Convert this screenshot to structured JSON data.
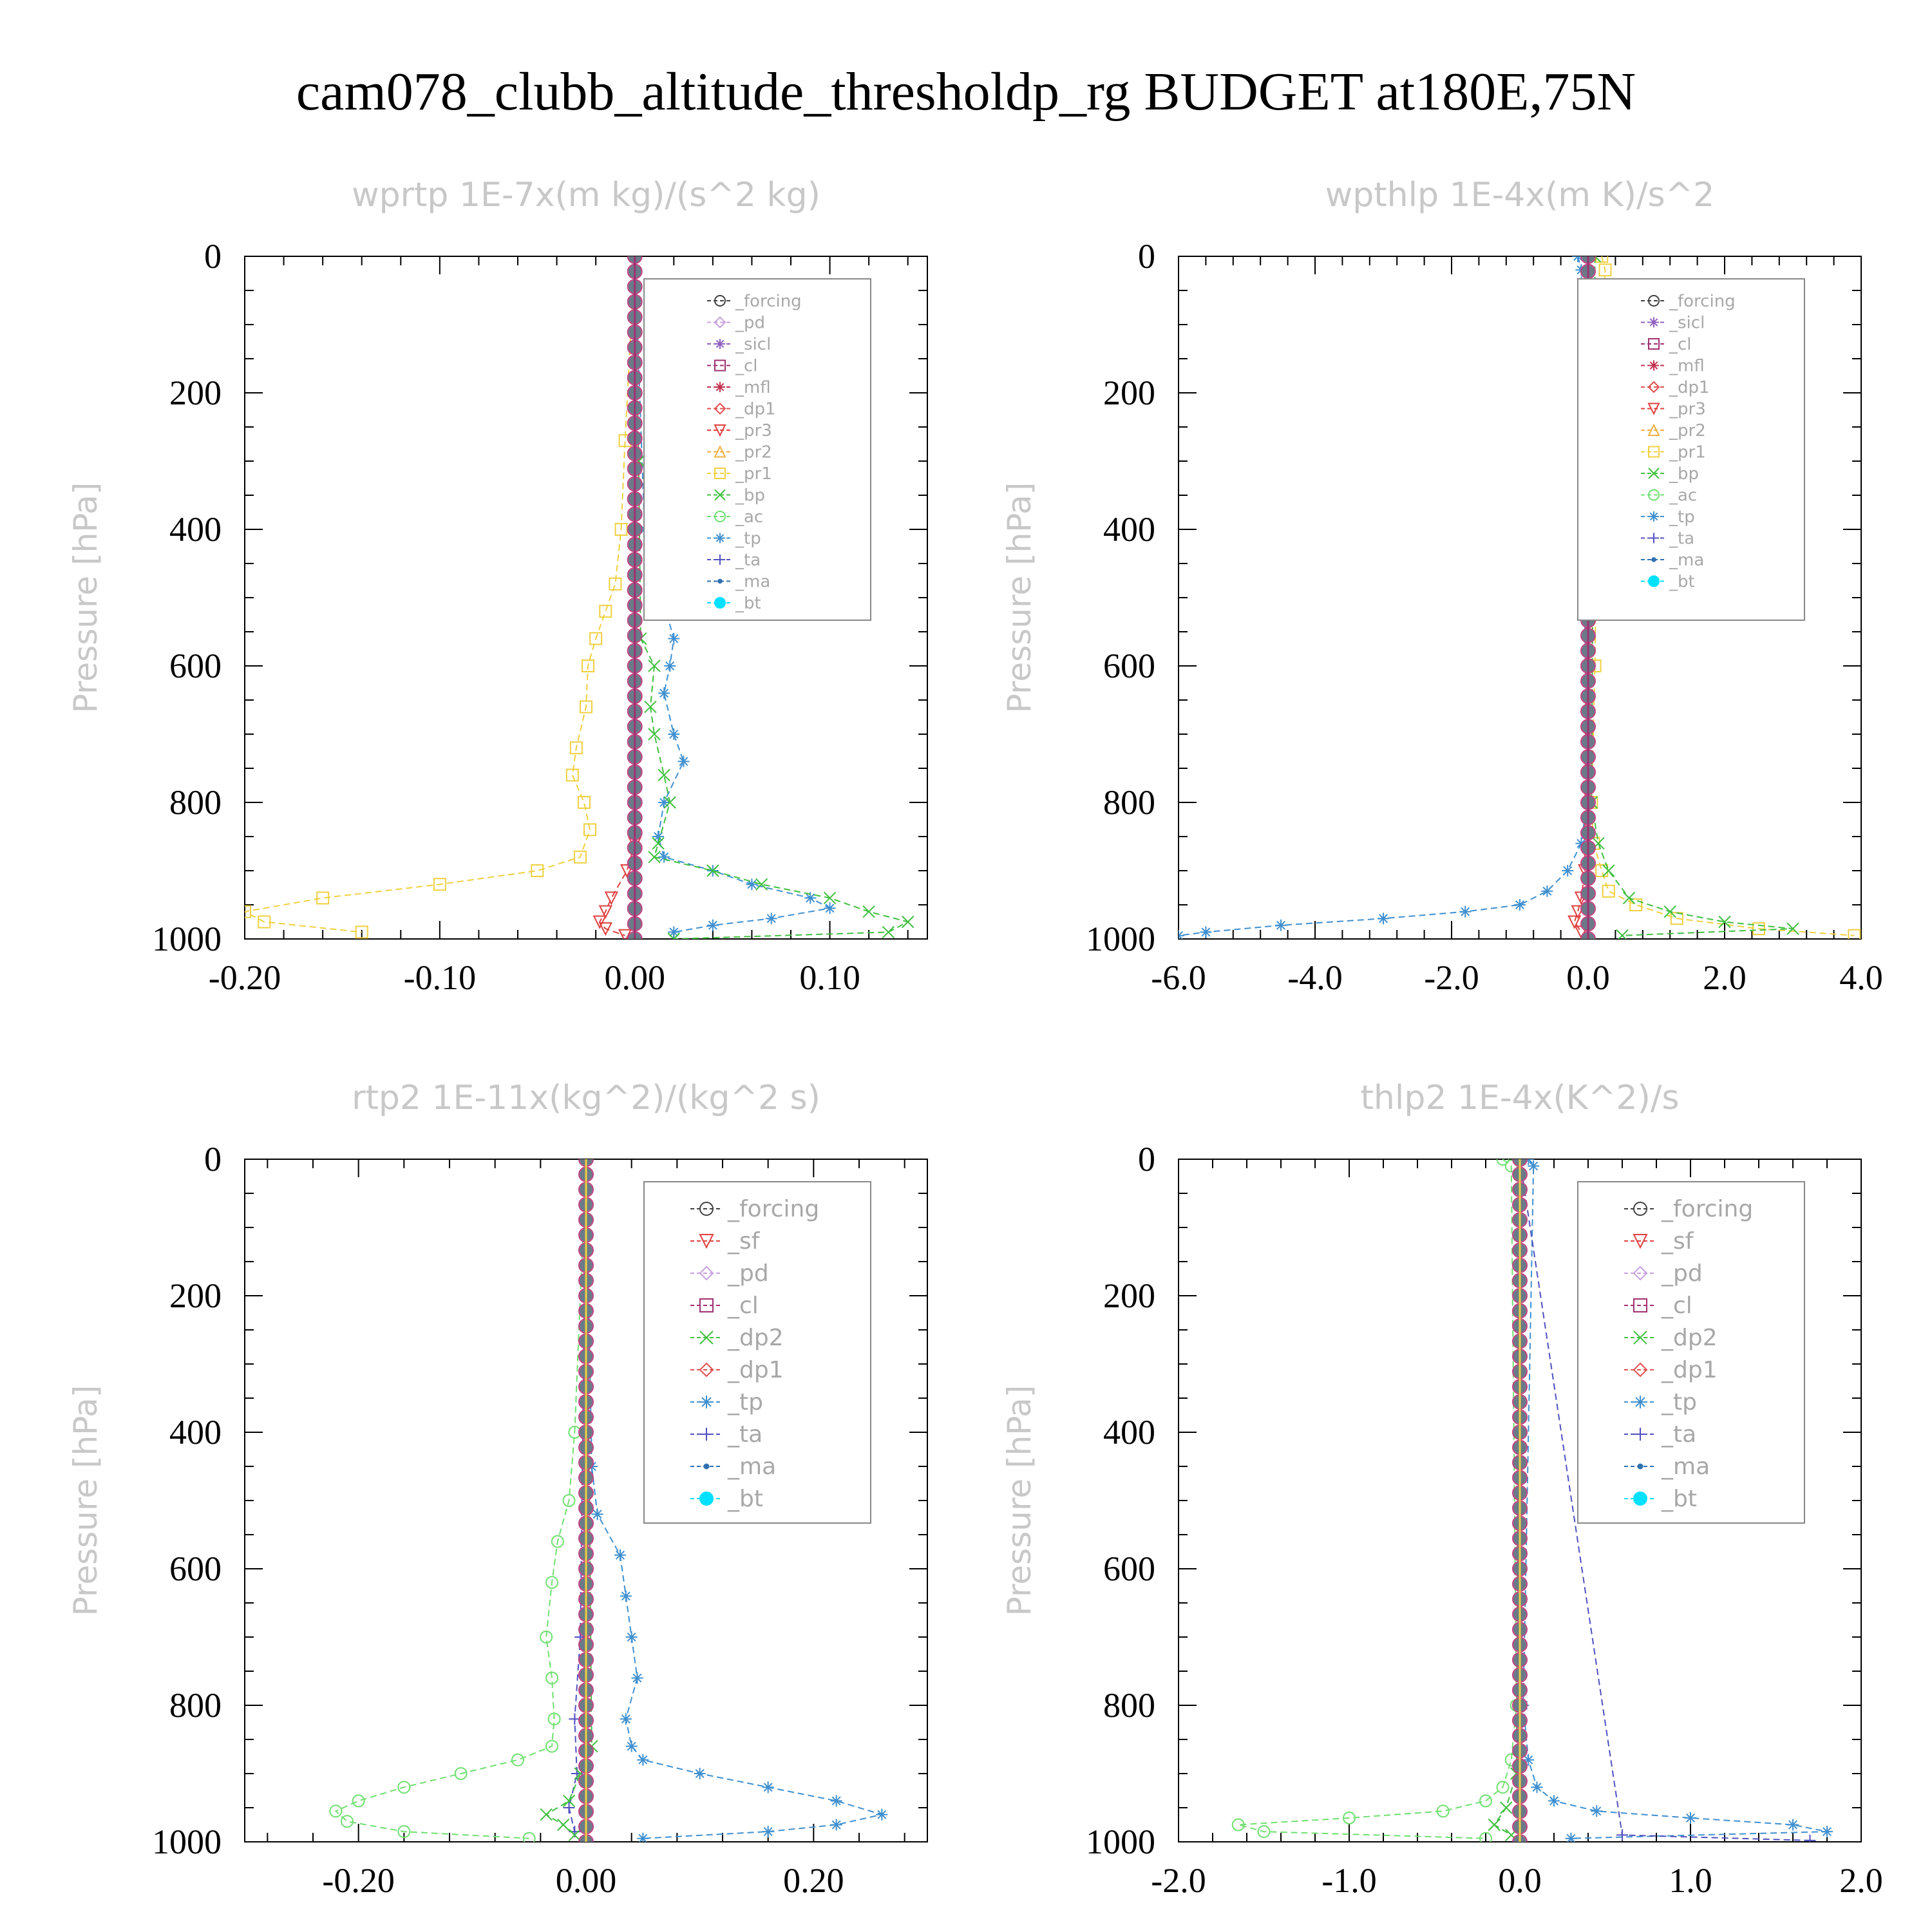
{
  "title": "cam078_clubb_altitude_thresholdp_rg  BUDGET at180E,75N",
  "colors": {
    "forcing": "#404040",
    "pd": "#c8a0e0",
    "sicl": "#9060c0",
    "cl": "#a03070",
    "mfl": "#c03050",
    "dp1": "#e05050",
    "pr3": "#e04040",
    "pr2": "#f0b040",
    "pr1": "#f0d040",
    "bp": "#40c040",
    "ac": "#70e070",
    "tp": "#4090d0",
    "ta": "#5050c0",
    "ma": "#3070b0",
    "bt": "#00e0ff"
  },
  "chart_data": [
    {
      "type": "line",
      "title": "wprtp   1E-7x(m kg)/(s^2 kg)",
      "ylabel": "Pressure [hPa]",
      "xlim": [
        -0.2,
        0.15
      ],
      "ylim": [
        0,
        1000
      ],
      "xticks": [
        "-0.20",
        "-0.10",
        "0.00",
        "0.10"
      ],
      "xtick_values": [
        -0.2,
        -0.1,
        0.0,
        0.1
      ],
      "yticks": [
        "0",
        "200",
        "400",
        "600",
        "800",
        "1000"
      ],
      "legend": [
        "_forcing",
        "_pd",
        "_sicl",
        "_cl",
        "_mfl",
        "_dp1",
        "_pr3",
        "_pr2",
        "_pr1",
        "_bp",
        "_ac",
        "_tp",
        "_ta",
        "_ma",
        "_bt"
      ],
      "legend_size": "small",
      "series": [
        {
          "key": "pr1",
          "pressure": [
            0,
            270,
            400,
            480,
            520,
            560,
            600,
            660,
            720,
            760,
            800,
            840,
            880,
            900,
            920,
            940,
            960,
            975,
            990
          ],
          "values": [
            0,
            -0.005,
            -0.007,
            -0.01,
            -0.015,
            -0.02,
            -0.024,
            -0.025,
            -0.03,
            -0.032,
            -0.026,
            -0.023,
            -0.028,
            -0.05,
            -0.1,
            -0.16,
            -0.2,
            -0.19,
            -0.14
          ]
        },
        {
          "key": "tp",
          "pressure": [
            0,
            400,
            480,
            560,
            600,
            640,
            700,
            740,
            800,
            850,
            880,
            900,
            920,
            940,
            955,
            970,
            980,
            990
          ],
          "values": [
            0,
            0.005,
            0.012,
            0.02,
            0.018,
            0.015,
            0.02,
            0.025,
            0.015,
            0.012,
            0.015,
            0.04,
            0.06,
            0.09,
            0.1,
            0.07,
            0.04,
            0.02
          ]
        },
        {
          "key": "bp",
          "pressure": [
            0,
            300,
            560,
            600,
            660,
            700,
            760,
            800,
            860,
            880,
            900,
            920,
            940,
            960,
            975,
            990,
            1000
          ],
          "values": [
            0,
            0.002,
            0.003,
            0.01,
            0.008,
            0.01,
            0.015,
            0.018,
            0.012,
            0.01,
            0.04,
            0.065,
            0.1,
            0.12,
            0.14,
            0.13,
            0.02
          ]
        },
        {
          "key": "pr3",
          "pressure": [
            0,
            860,
            900,
            940,
            960,
            975,
            985,
            995
          ],
          "values": [
            0,
            0,
            -0.004,
            -0.012,
            -0.015,
            -0.018,
            -0.015,
            -0.005
          ]
        },
        {
          "key": "forcing",
          "pressure": [
            0,
            1000
          ],
          "values": [
            0,
            0
          ],
          "markers": 45
        },
        {
          "key": "cl",
          "pressure": [
            0,
            1000
          ],
          "values": [
            0,
            0
          ]
        }
      ]
    },
    {
      "type": "line",
      "title": "wpthlp   1E-4x(m K)/s^2",
      "ylabel": "Pressure [hPa]",
      "xlim": [
        -6.0,
        4.0
      ],
      "ylim": [
        0,
        1000
      ],
      "xticks": [
        "-6.0",
        "-4.0",
        "-2.0",
        "0.0",
        "2.0",
        "4.0"
      ],
      "xtick_values": [
        -6,
        -4,
        -2,
        0,
        2,
        4
      ],
      "yticks": [
        "0",
        "200",
        "400",
        "600",
        "800",
        "1000"
      ],
      "legend": [
        "_forcing",
        "_sicl",
        "_cl",
        "_mfl",
        "_dp1",
        "_pr3",
        "_pr2",
        "_pr1",
        "_bp",
        "_ac",
        "_tp",
        "_ta",
        "_ma",
        "_bt"
      ],
      "legend_size": "small",
      "series": [
        {
          "key": "pr1",
          "pressure": [
            0,
            20,
            200,
            600,
            800,
            860,
            900,
            930,
            950,
            970,
            985,
            995
          ],
          "values": [
            0.2,
            0.25,
            0.15,
            0.1,
            0.05,
            0.08,
            0.2,
            0.3,
            0.7,
            1.3,
            2.5,
            3.9
          ]
        },
        {
          "key": "bp",
          "pressure": [
            0,
            800,
            860,
            900,
            940,
            960,
            975,
            985,
            995
          ],
          "values": [
            0.1,
            0.05,
            0.15,
            0.3,
            0.6,
            1.2,
            2.0,
            3.0,
            0.5
          ]
        },
        {
          "key": "tp",
          "pressure": [
            0,
            20,
            800,
            860,
            900,
            930,
            950,
            960,
            970,
            980,
            990,
            995
          ],
          "values": [
            -0.15,
            -0.1,
            -0.02,
            -0.1,
            -0.3,
            -0.6,
            -1.0,
            -1.8,
            -3.0,
            -4.5,
            -5.6,
            -6.0
          ]
        },
        {
          "key": "pr3",
          "pressure": [
            0,
            900,
            940,
            960,
            975,
            990
          ],
          "values": [
            0,
            -0.05,
            -0.1,
            -0.15,
            -0.2,
            -0.1
          ]
        },
        {
          "key": "forcing",
          "pressure": [
            0,
            1000
          ],
          "values": [
            0,
            0
          ],
          "markers": 45
        },
        {
          "key": "cl",
          "pressure": [
            0,
            1000
          ],
          "values": [
            0,
            0
          ]
        }
      ]
    },
    {
      "type": "line",
      "title": "rtp2   1E-11x(kg^2)/(kg^2 s)",
      "ylabel": "Pressure [hPa]",
      "xlim": [
        -0.3,
        0.3
      ],
      "ylim": [
        0,
        1000
      ],
      "xticks": [
        "-0.20",
        "0.00",
        "0.20"
      ],
      "xtick_values": [
        -0.2,
        0.0,
        0.2
      ],
      "yticks": [
        "0",
        "200",
        "400",
        "600",
        "800",
        "1000"
      ],
      "legend": [
        "_forcing",
        "_sf",
        "_pd",
        "_cl",
        "_dp2",
        "_dp1",
        "_tp",
        "_ta",
        "_ma",
        "_bt"
      ],
      "legend_size": "large",
      "series": [
        {
          "key": "ac",
          "pressure": [
            0,
            400,
            500,
            560,
            620,
            700,
            760,
            820,
            860,
            880,
            900,
            920,
            940,
            955,
            970,
            985,
            995
          ],
          "values": [
            0,
            -0.01,
            -0.015,
            -0.025,
            -0.03,
            -0.035,
            -0.03,
            -0.028,
            -0.03,
            -0.06,
            -0.11,
            -0.16,
            -0.2,
            -0.22,
            -0.21,
            -0.16,
            -0.05
          ]
        },
        {
          "key": "tp",
          "pressure": [
            0,
            450,
            520,
            580,
            640,
            700,
            760,
            820,
            860,
            880,
            900,
            920,
            940,
            960,
            975,
            985,
            995
          ],
          "values": [
            0,
            0.005,
            0.01,
            0.03,
            0.035,
            0.04,
            0.045,
            0.035,
            0.04,
            0.05,
            0.1,
            0.16,
            0.22,
            0.26,
            0.22,
            0.16,
            0.05
          ]
        },
        {
          "key": "ta",
          "pressure": [
            0,
            700,
            820,
            900,
            950,
            985
          ],
          "values": [
            0,
            -0.005,
            -0.01,
            -0.008,
            -0.015,
            -0.01
          ]
        },
        {
          "key": "bp",
          "pressure": [
            0,
            860,
            900,
            940,
            960,
            975,
            990
          ],
          "values": [
            0,
            0.005,
            -0.005,
            -0.015,
            -0.035,
            -0.02,
            -0.01
          ]
        },
        {
          "key": "pr3",
          "pressure": [
            0,
            1000
          ],
          "values": [
            0,
            0
          ],
          "markers": 45
        },
        {
          "key": "pr1",
          "pressure": [
            0,
            1000
          ],
          "values": [
            0,
            0
          ]
        }
      ]
    },
    {
      "type": "line",
      "title": "thlp2   1E-4x(K^2)/s",
      "ylabel": "Pressure [hPa]",
      "xlim": [
        -2.0,
        2.0
      ],
      "ylim": [
        0,
        1000
      ],
      "xticks": [
        "-2.0",
        "-1.0",
        "0.0",
        "1.0",
        "2.0"
      ],
      "xtick_values": [
        -2,
        -1,
        0,
        1,
        2
      ],
      "yticks": [
        "0",
        "200",
        "400",
        "600",
        "800",
        "1000"
      ],
      "legend": [
        "_forcing",
        "_sf",
        "_pd",
        "_cl",
        "_dp2",
        "_dp1",
        "_tp",
        "_ta",
        "_ma",
        "_bt"
      ],
      "legend_size": "large",
      "series": [
        {
          "key": "ac",
          "pressure": [
            0,
            10,
            800,
            880,
            920,
            940,
            955,
            965,
            975,
            985,
            995
          ],
          "values": [
            -0.1,
            -0.05,
            -0.02,
            -0.05,
            -0.1,
            -0.2,
            -0.45,
            -1.0,
            -1.65,
            -1.5,
            -0.2
          ]
        },
        {
          "key": "tp",
          "pressure": [
            0,
            10,
            800,
            880,
            920,
            940,
            955,
            965,
            975,
            985,
            995
          ],
          "values": [
            0.05,
            0.08,
            0.02,
            0.05,
            0.1,
            0.2,
            0.45,
            1.0,
            1.6,
            1.8,
            0.3
          ]
        },
        {
          "key": "bp",
          "pressure": [
            0,
            900,
            950,
            975,
            990
          ],
          "values": [
            0,
            -0.02,
            -0.08,
            -0.15,
            -0.05
          ]
        },
        {
          "key": "ta",
          "pressure": [
            0,
            990,
            998
          ],
          "values": [
            0,
            0.6,
            1.7
          ]
        },
        {
          "key": "pr3",
          "pressure": [
            0,
            1000
          ],
          "values": [
            0,
            0
          ],
          "markers": 45
        },
        {
          "key": "pr1",
          "pressure": [
            0,
            1000
          ],
          "values": [
            0,
            0
          ]
        }
      ]
    }
  ]
}
